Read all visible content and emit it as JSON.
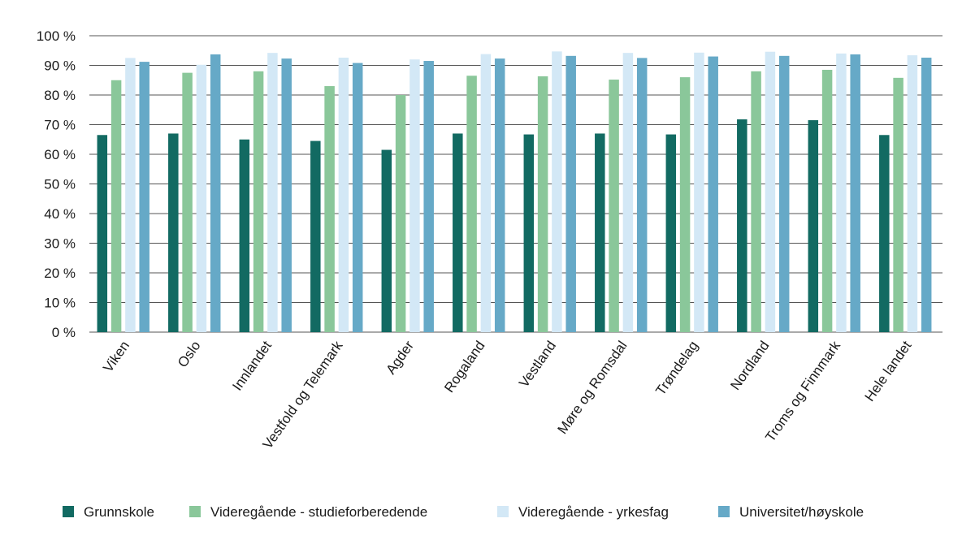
{
  "chart_data": {
    "type": "bar",
    "title": "",
    "xlabel": "",
    "ylabel": "",
    "ylim": [
      0,
      100
    ],
    "y_ticks": [
      0,
      10,
      20,
      30,
      40,
      50,
      60,
      70,
      80,
      90,
      100
    ],
    "y_tick_suffix": " %",
    "grid": true,
    "legend_position": "bottom",
    "categories": [
      "Viken",
      "Oslo",
      "Innlandet",
      "Vestfold og Telemark",
      "Agder",
      "Rogaland",
      "Vestland",
      "Møre og Romsdal",
      "Trøndelag",
      "Nordland",
      "Troms og Finnmark",
      "Hele landet"
    ],
    "series": [
      {
        "name": "Grunnskole",
        "color": "#126a62",
        "values": [
          66.5,
          67,
          65,
          64.5,
          61.5,
          67,
          66.7,
          67,
          66.7,
          71.8,
          71.5,
          66.5
        ]
      },
      {
        "name": "Videregående - studieforberedende",
        "color": "#8ac79a",
        "values": [
          85,
          87.5,
          88,
          83,
          80,
          86.5,
          86.3,
          85.2,
          86,
          88,
          88.5,
          85.8
        ]
      },
      {
        "name": "Videregående - yrkesfag",
        "color": "#d3e8f6",
        "values": [
          92.5,
          90.2,
          94.2,
          92.6,
          92,
          93.8,
          94.7,
          94.2,
          94.3,
          94.6,
          94,
          93.4
        ]
      },
      {
        "name": "Universitet/høyskole",
        "color": "#66a9c7",
        "values": [
          91.2,
          93.7,
          92.3,
          90.8,
          91.5,
          92.3,
          93.2,
          92.5,
          93,
          93.2,
          93.7,
          92.6
        ]
      }
    ]
  }
}
